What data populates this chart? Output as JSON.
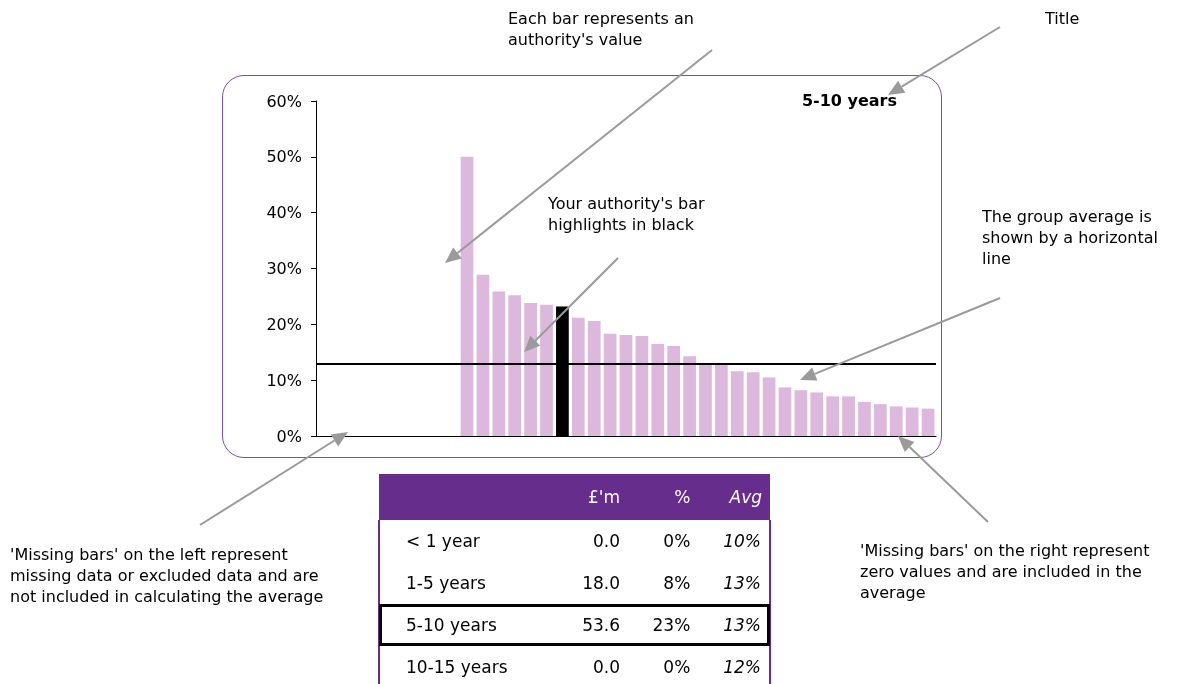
{
  "chart_data": [
    {
      "type": "bar",
      "title": "5-10 years",
      "annotations": [
        "Each bar represents an authority's value",
        "Title",
        "Your authority's bar highlights in black",
        "The group average is shown by a horizontal line",
        "'Missing bars' on the left represent missing data or excluded data and are not included in calculating the average",
        "'Missing bars' on the right represent zero values and are included in the average"
      ],
      "categories": [
        null,
        null,
        null,
        null,
        null,
        null,
        null,
        null,
        null,
        null,
        null,
        null,
        null,
        null,
        null,
        null,
        null,
        null,
        null,
        null,
        null,
        null,
        null,
        null,
        null,
        null,
        null,
        null,
        null,
        null,
        null,
        null,
        null,
        null,
        null,
        null,
        null,
        null,
        null
      ],
      "values": [
        null,
        null,
        null,
        null,
        null,
        null,
        null,
        null,
        null,
        50,
        28.9,
        25.9,
        25.2,
        23.8,
        23.5,
        23.2,
        21.2,
        20.6,
        18.3,
        18.1,
        17.9,
        16.5,
        16.1,
        14.3,
        13,
        13,
        11.6,
        11.4,
        10.5,
        8.7,
        8.2,
        7.8,
        7.1,
        7.1,
        6.1,
        5.7,
        5.3,
        5.1,
        4.9
      ],
      "colors": [
        "#dcb8dc",
        "#dcb8dc",
        "#dcb8dc",
        "#dcb8dc",
        "#dcb8dc",
        "#dcb8dc",
        "#dcb8dc",
        "#dcb8dc",
        "#dcb8dc",
        "#dcb8dc",
        "#dcb8dc",
        "#dcb8dc",
        "#dcb8dc",
        "#dcb8dc",
        "#dcb8dc",
        "#000000",
        "#dcb8dc",
        "#dcb8dc",
        "#dcb8dc",
        "#dcb8dc",
        "#dcb8dc",
        "#dcb8dc",
        "#dcb8dc",
        "#dcb8dc",
        "#dcb8dc",
        "#dcb8dc",
        "#dcb8dc",
        "#dcb8dc",
        "#dcb8dc",
        "#dcb8dc",
        "#dcb8dc",
        "#dcb8dc",
        "#dcb8dc",
        "#dcb8dc",
        "#dcb8dc",
        "#dcb8dc",
        "#dcb8dc",
        "#dcb8dc",
        "#dcb8dc"
      ],
      "ylim": [
        0,
        60
      ],
      "yticks": [
        {
          "value": 0,
          "label": "0%"
        },
        {
          "value": 10,
          "label": "10%"
        },
        {
          "value": 20,
          "label": "20%"
        },
        {
          "value": 30,
          "label": "30%"
        },
        {
          "value": 40,
          "label": "40%"
        },
        {
          "value": 50,
          "label": "50%"
        },
        {
          "value": 60,
          "label": "60%"
        }
      ],
      "ref_lines": [
        {
          "axis": "y",
          "value": 13,
          "color": "#000000"
        }
      ],
      "tick_labels": "y",
      "grid": false
    },
    {
      "type": "other",
      "categories": [
        "< 1 year",
        "1-5 years",
        "5-10 years",
        "10-15 years"
      ],
      "colors": [
        "#ffffff",
        "#ffffff",
        "#000000",
        "#ffffff"
      ],
      "series": [
        {
          "name": "£'m",
          "values": [
            0.0,
            18.0,
            53.6,
            0.0
          ],
          "value_labels": [
            "0.0",
            "18.0",
            "53.6",
            "0.0"
          ]
        },
        {
          "name": "%",
          "values": [
            0,
            8,
            23,
            0
          ],
          "value_labels": [
            "0%",
            "8%",
            "23%",
            "0%"
          ]
        },
        {
          "name": "Avg",
          "values": [
            10,
            13,
            13,
            12
          ],
          "value_labels": [
            "10%",
            "13%",
            "13%",
            "12%"
          ]
        }
      ]
    }
  ]
}
